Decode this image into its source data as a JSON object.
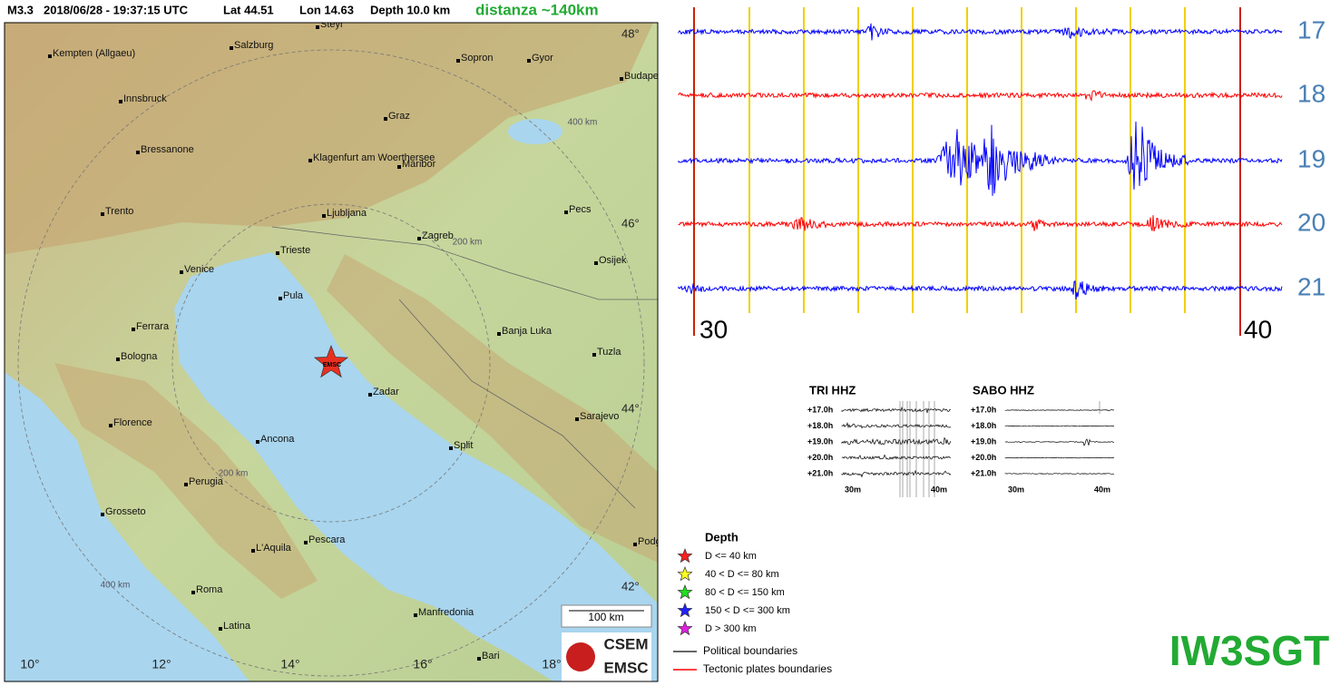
{
  "header": {
    "magnitude": "M3.3",
    "datetime": "2018/06/28 - 19:37:15 UTC",
    "lat": "Lat 44.51",
    "lon": "Lon 14.63",
    "depth": "Depth 10.0 km",
    "distance": "distanza ~140km"
  },
  "map": {
    "cities": [
      "Steyr",
      "Kempten (Allgaeu)",
      "Salzburg",
      "Sopron",
      "Gyor",
      "Budapest",
      "Innsbruck",
      "Graz",
      "Bressanone",
      "Klagenfurt am Woerthersee",
      "Maribor",
      "Trento",
      "Ljubljana",
      "Pecs",
      "Zagreb",
      "Trieste",
      "Osijek",
      "Venice",
      "Pula",
      "Ferrara",
      "Banja Luka",
      "Bologna",
      "Tuzla",
      "Zadar",
      "Sarajevo",
      "Florence",
      "Ancona",
      "Split",
      "Perugia",
      "Grosseto",
      "Pescara",
      "L'Aquila",
      "Podgorica",
      "Roma",
      "Manfredonia",
      "Latina",
      "Bari"
    ],
    "lat_labels": [
      "48°",
      "46°",
      "44°",
      "42°"
    ],
    "lon_labels": [
      "10°",
      "12°",
      "14°",
      "16°",
      "18°"
    ],
    "ring_labels": [
      "400 km",
      "200 km",
      "200 km",
      "400 km"
    ],
    "epicenter": "EMSC",
    "scale": "100 km",
    "logo": [
      "CSEM",
      "EMSC"
    ]
  },
  "seismogram": {
    "hours": [
      "17",
      "18",
      "19",
      "20",
      "21"
    ],
    "trace_colors": [
      "#0000ff",
      "#ff0000",
      "#0000ff",
      "#ff0000",
      "#0000ff"
    ],
    "minutes": [
      "30",
      "40"
    ]
  },
  "helicorders": [
    {
      "title": "TRI HHZ",
      "hours": [
        "+17.0h",
        "+18.0h",
        "+19.0h",
        "+20.0h",
        "+21.0h"
      ],
      "minutes": [
        "30m",
        "40m"
      ]
    },
    {
      "title": "SABO HHZ",
      "hours": [
        "+17.0h",
        "+18.0h",
        "+19.0h",
        "+20.0h",
        "+21.0h"
      ],
      "minutes": [
        "30m",
        "40m"
      ]
    }
  ],
  "legend": {
    "title": "Depth",
    "items": [
      {
        "label": "D <= 40 km",
        "color": "#ff2020"
      },
      {
        "label": "40 < D <= 80 km",
        "color": "#ffff20"
      },
      {
        "label": "80 < D <= 150 km",
        "color": "#20e020"
      },
      {
        "label": "150 < D <= 300 km",
        "color": "#2020ff"
      },
      {
        "label": "D > 300 km",
        "color": "#e020e0"
      }
    ],
    "lines": [
      {
        "label": "Political boundaries",
        "color": "#333333"
      },
      {
        "label": "Tectonic plates boundaries",
        "color": "#ff0000"
      }
    ]
  },
  "callsign": "IW3SGT"
}
